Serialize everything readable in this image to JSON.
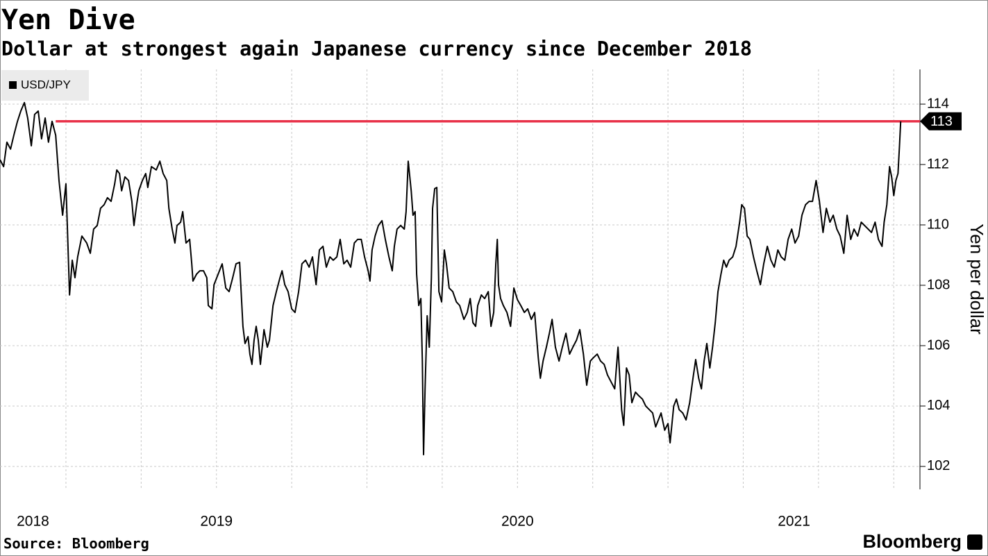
{
  "chart_data": {
    "type": "line",
    "title": "Yen Dive",
    "subtitle": "Dollar at strongest again Japanese currency since December 2018",
    "y_label": "Yen per dollar",
    "source": "Source: Bloomberg",
    "logo": "Bloomberg",
    "xlim": [
      2018.781,
      2021.837
    ],
    "xticks": [
      2019,
      2019.25,
      2019.5,
      2019.75,
      2020,
      2020.25,
      2020.5,
      2020.75,
      2021,
      2021.25,
      2021.5,
      2021.75
    ],
    "xtick_labels": [
      "2018",
      "2019",
      "2020",
      "2021"
    ],
    "ylim": [
      101.24,
      115.15
    ],
    "yticks": [
      102,
      104,
      106,
      108,
      110,
      112,
      114
    ],
    "grid": true,
    "legend": "top-left",
    "reference_line": {
      "value": 113.43,
      "label": "113",
      "x_start": 2018.966,
      "color": "#e8334a"
    },
    "x": [
      2018.781,
      2018.793,
      2018.804,
      2018.816,
      2018.827,
      2018.839,
      2018.85,
      2018.862,
      2018.873,
      2018.885,
      2018.896,
      2018.908,
      2018.919,
      2018.931,
      2018.942,
      2018.954,
      2018.966,
      2018.977,
      2018.989,
      2019.0,
      2019.005,
      2019.012,
      2019.021,
      2019.03,
      2019.039,
      2019.053,
      2019.069,
      2019.081,
      2019.092,
      2019.104,
      2019.115,
      2019.127,
      2019.138,
      2019.15,
      2019.162,
      2019.169,
      2019.178,
      2019.185,
      2019.196,
      2019.208,
      2019.219,
      2019.226,
      2019.235,
      2019.242,
      2019.254,
      2019.265,
      2019.272,
      2019.284,
      2019.3,
      2019.312,
      2019.323,
      2019.335,
      2019.342,
      2019.353,
      2019.362,
      2019.369,
      2019.381,
      2019.388,
      2019.399,
      2019.411,
      2019.418,
      2019.422,
      2019.434,
      2019.445,
      2019.457,
      2019.468,
      2019.473,
      2019.485,
      2019.492,
      2019.501,
      2019.51,
      2019.519,
      2019.531,
      2019.542,
      2019.554,
      2019.565,
      2019.577,
      2019.588,
      2019.595,
      2019.605,
      2019.611,
      2019.618,
      2019.625,
      2019.632,
      2019.639,
      2019.646,
      2019.658,
      2019.669,
      2019.676,
      2019.688,
      2019.699,
      2019.711,
      2019.718,
      2019.727,
      2019.738,
      2019.75,
      2019.761,
      2019.773,
      2019.784,
      2019.796,
      2019.808,
      2019.819,
      2019.831,
      2019.842,
      2019.854,
      2019.865,
      2019.877,
      2019.888,
      2019.9,
      2019.911,
      2019.923,
      2019.934,
      2019.946,
      2019.958,
      2019.969,
      2019.981,
      2019.992,
      2020.004,
      2020.01,
      2020.017,
      2020.027,
      2020.038,
      2020.05,
      2020.061,
      2020.073,
      2020.084,
      2020.091,
      2020.1,
      2020.112,
      2020.124,
      2020.13,
      2020.137,
      2020.147,
      2020.153,
      2020.16,
      2020.165,
      2020.172,
      2020.179,
      2020.184,
      2020.188,
      2020.193,
      2020.2,
      2020.207,
      2020.214,
      2020.218,
      2020.225,
      2020.232,
      2020.239,
      2020.248,
      2020.257,
      2020.264,
      2020.273,
      2020.285,
      2020.297,
      2020.308,
      2020.322,
      2020.333,
      2020.343,
      2020.352,
      2020.361,
      2020.368,
      2020.38,
      2020.391,
      2020.403,
      2020.412,
      2020.421,
      2020.428,
      2020.433,
      2020.437,
      2020.444,
      2020.453,
      2020.465,
      2020.477,
      2020.488,
      2020.5,
      2020.511,
      2020.523,
      2020.534,
      2020.546,
      2020.557,
      2020.569,
      2020.576,
      2020.585,
      2020.596,
      2020.606,
      2020.615,
      2020.626,
      2020.638,
      2020.649,
      2020.661,
      2020.673,
      2020.684,
      2020.696,
      2020.707,
      2020.719,
      2020.73,
      2020.742,
      2020.753,
      2020.765,
      2020.776,
      2020.788,
      2020.799,
      2020.811,
      2020.823,
      2020.834,
      2020.846,
      2020.853,
      2020.862,
      2020.871,
      2020.88,
      2020.892,
      2020.903,
      2020.915,
      2020.926,
      2020.938,
      2020.949,
      2020.959,
      2020.968,
      2020.977,
      2020.989,
      2021.0,
      2021.007,
      2021.019,
      2021.028,
      2021.037,
      2021.049,
      2021.06,
      2021.072,
      2021.083,
      2021.092,
      2021.102,
      2021.111,
      2021.12,
      2021.129,
      2021.139,
      2021.148,
      2021.157,
      2021.166,
      2021.176,
      2021.185,
      2021.194,
      2021.203,
      2021.215,
      2021.226,
      2021.238,
      2021.245,
      2021.254,
      2021.263,
      2021.272,
      2021.284,
      2021.295,
      2021.307,
      2021.318,
      2021.33,
      2021.342,
      2021.353,
      2021.365,
      2021.376,
      2021.388,
      2021.399,
      2021.411,
      2021.422,
      2021.434,
      2021.445,
      2021.457,
      2021.469,
      2021.48,
      2021.492,
      2021.503,
      2021.515,
      2021.526,
      2021.538,
      2021.549,
      2021.561,
      2021.572,
      2021.584,
      2021.595,
      2021.607,
      2021.618,
      2021.63,
      2021.642,
      2021.653,
      2021.665,
      2021.676,
      2021.688,
      2021.699,
      2021.711,
      2021.718,
      2021.727,
      2021.736,
      2021.743,
      2021.75,
      2021.757,
      2021.764,
      2021.769,
      2021.773
    ],
    "series": [
      {
        "name": "USD/JPY",
        "color": "#000000",
        "values": [
          112.16,
          111.93,
          112.74,
          112.51,
          112.97,
          113.43,
          113.77,
          114.05,
          113.54,
          112.62,
          113.66,
          113.77,
          112.85,
          113.54,
          112.74,
          113.43,
          112.97,
          111.47,
          110.32,
          111.36,
          109.86,
          107.68,
          108.83,
          108.25,
          108.94,
          109.63,
          109.4,
          109.06,
          109.86,
          109.98,
          110.55,
          110.67,
          110.9,
          110.78,
          111.36,
          111.82,
          111.7,
          111.13,
          111.59,
          111.47,
          110.78,
          109.98,
          110.67,
          111.13,
          111.47,
          111.7,
          111.24,
          111.93,
          111.82,
          112.11,
          111.7,
          111.47,
          110.55,
          109.86,
          109.4,
          109.98,
          110.09,
          110.44,
          109.4,
          109.52,
          108.71,
          108.14,
          108.37,
          108.48,
          108.48,
          108.25,
          107.33,
          107.22,
          108.02,
          108.25,
          108.48,
          108.71,
          107.91,
          107.79,
          108.25,
          108.71,
          108.76,
          106.64,
          106.07,
          106.3,
          105.72,
          105.38,
          106.18,
          106.64,
          106.18,
          105.38,
          106.53,
          105.95,
          106.18,
          107.33,
          107.79,
          108.25,
          108.48,
          108.02,
          107.79,
          107.22,
          107.1,
          107.79,
          108.71,
          108.83,
          108.6,
          108.94,
          108.02,
          109.17,
          109.29,
          108.6,
          108.94,
          108.83,
          108.94,
          109.52,
          108.71,
          108.83,
          108.6,
          109.4,
          109.52,
          109.52,
          108.94,
          108.48,
          108.14,
          109.17,
          109.63,
          109.98,
          110.14,
          109.52,
          108.94,
          108.48,
          109.29,
          109.86,
          109.98,
          109.86,
          110.44,
          112.11,
          111.13,
          110.32,
          110.44,
          108.37,
          107.33,
          107.56,
          105.49,
          102.39,
          104.57,
          106.99,
          105.95,
          108.25,
          110.55,
          111.2,
          111.24,
          107.79,
          107.45,
          109.17,
          108.71,
          107.91,
          107.79,
          107.45,
          107.33,
          106.87,
          107.1,
          107.56,
          106.76,
          106.64,
          107.33,
          107.68,
          107.56,
          107.79,
          106.64,
          107.1,
          108.71,
          109.52,
          108.02,
          107.56,
          107.33,
          107.1,
          106.64,
          107.91,
          107.52,
          107.33,
          107.1,
          107.22,
          106.87,
          107.1,
          105.61,
          104.92,
          105.49,
          105.95,
          106.41,
          106.87,
          105.95,
          105.49,
          105.95,
          106.41,
          105.72,
          105.95,
          106.18,
          106.53,
          105.72,
          104.69,
          105.49,
          105.61,
          105.72,
          105.49,
          105.38,
          105.03,
          104.8,
          104.57,
          105.95,
          103.88,
          103.36,
          105.26,
          105.03,
          104.11,
          104.46,
          104.34,
          104.23,
          104.0,
          103.88,
          103.77,
          103.31,
          103.54,
          103.77,
          103.2,
          103.42,
          102.78,
          104.0,
          104.23,
          103.88,
          103.77,
          103.54,
          104.11,
          104.92,
          105.54,
          104.92,
          104.57,
          105.49,
          106.07,
          105.26,
          105.95,
          106.76,
          107.79,
          108.37,
          108.83,
          108.6,
          108.83,
          108.94,
          109.29,
          110.09,
          110.67,
          110.55,
          109.63,
          109.52,
          108.94,
          108.48,
          108.02,
          108.71,
          109.29,
          108.83,
          108.6,
          109.17,
          108.94,
          108.83,
          109.52,
          109.86,
          109.4,
          109.63,
          110.32,
          110.67,
          110.78,
          110.78,
          111.47,
          110.78,
          109.75,
          110.55,
          110.09,
          110.32,
          109.86,
          109.63,
          109.06,
          110.32,
          109.52,
          109.86,
          109.63,
          110.09,
          109.98,
          109.86,
          109.75,
          110.09,
          109.52,
          109.29,
          110.09,
          110.67,
          111.93,
          111.59,
          110.97,
          111.47,
          111.7,
          112.62,
          113.43
        ]
      }
    ]
  }
}
